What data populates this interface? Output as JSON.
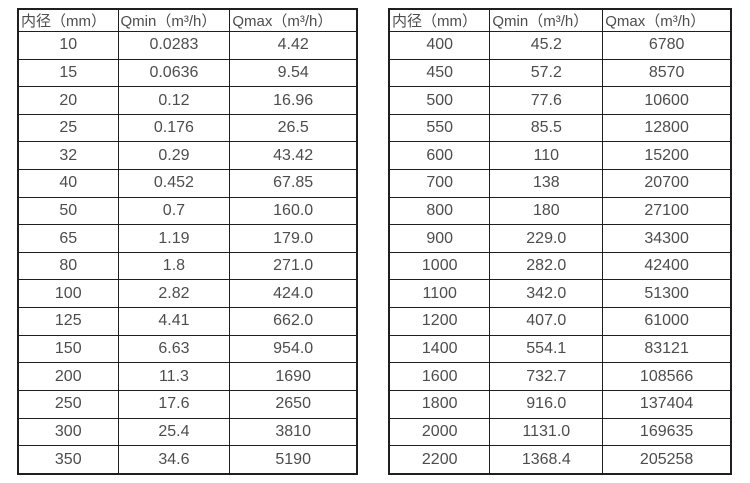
{
  "page": {
    "background": "#ffffff",
    "text_color": "#4d4d4d",
    "border_color": "#1f1f1f"
  },
  "tables": [
    {
      "name": "flow-spec-table-left",
      "headers": [
        "内径（mm）",
        "Qmin（m³/h）",
        "Qmax（m³/h）"
      ],
      "rows": [
        [
          "10",
          "0.0283",
          "4.42"
        ],
        [
          "15",
          "0.0636",
          "9.54"
        ],
        [
          "20",
          "0.12",
          "16.96"
        ],
        [
          "25",
          "0.176",
          "26.5"
        ],
        [
          "32",
          "0.29",
          "43.42"
        ],
        [
          "40",
          "0.452",
          "67.85"
        ],
        [
          "50",
          "0.7",
          "160.0"
        ],
        [
          "65",
          "1.19",
          "179.0"
        ],
        [
          "80",
          "1.8",
          "271.0"
        ],
        [
          "100",
          "2.82",
          "424.0"
        ],
        [
          "125",
          "4.41",
          "662.0"
        ],
        [
          "150",
          "6.63",
          "954.0"
        ],
        [
          "200",
          "11.3",
          "1690"
        ],
        [
          "250",
          "17.6",
          "2650"
        ],
        [
          "300",
          "25.4",
          "3810"
        ],
        [
          "350",
          "34.6",
          "5190"
        ]
      ]
    },
    {
      "name": "flow-spec-table-right",
      "headers": [
        "内径（mm）",
        "Qmin（m³/h）",
        "Qmax（m³/h）"
      ],
      "rows": [
        [
          "400",
          "45.2",
          "6780"
        ],
        [
          "450",
          "57.2",
          "8570"
        ],
        [
          "500",
          "77.6",
          "10600"
        ],
        [
          "550",
          "85.5",
          "12800"
        ],
        [
          "600",
          "110",
          "15200"
        ],
        [
          "700",
          "138",
          "20700"
        ],
        [
          "800",
          "180",
          "27100"
        ],
        [
          "900",
          "229.0",
          "34300"
        ],
        [
          "1000",
          "282.0",
          "42400"
        ],
        [
          "1100",
          "342.0",
          "51300"
        ],
        [
          "1200",
          "407.0",
          "61000"
        ],
        [
          "1400",
          "554.1",
          "83121"
        ],
        [
          "1600",
          "732.7",
          "108566"
        ],
        [
          "1800",
          "916.0",
          "137404"
        ],
        [
          "2000",
          "1131.0",
          "169635"
        ],
        [
          "2200",
          "1368.4",
          "205258"
        ]
      ]
    }
  ]
}
